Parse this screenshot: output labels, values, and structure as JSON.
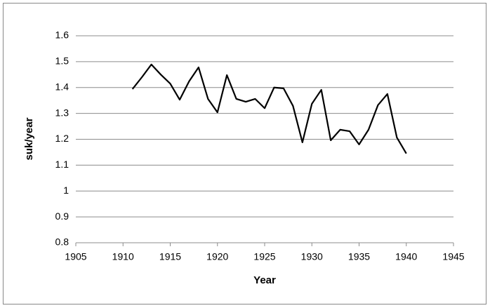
{
  "chart_data": {
    "type": "line",
    "x": [
      1911,
      1912,
      1913,
      1914,
      1915,
      1916,
      1917,
      1918,
      1919,
      1920,
      1921,
      1922,
      1923,
      1924,
      1925,
      1926,
      1927,
      1928,
      1929,
      1930,
      1931,
      1932,
      1933,
      1934,
      1935,
      1936,
      1937,
      1938,
      1939,
      1940
    ],
    "values": [
      1.394,
      1.44,
      1.489,
      1.45,
      1.415,
      1.353,
      1.424,
      1.478,
      1.356,
      1.304,
      1.448,
      1.356,
      1.345,
      1.356,
      1.32,
      1.4,
      1.397,
      1.329,
      1.188,
      1.337,
      1.391,
      1.196,
      1.237,
      1.231,
      1.18,
      1.237,
      1.332,
      1.375,
      1.207,
      1.145
    ],
    "color": "#000000",
    "xlabel": "Year",
    "ylabel": "suk/year",
    "xlim": [
      1905,
      1945
    ],
    "xticks": [
      1905,
      1910,
      1915,
      1920,
      1925,
      1930,
      1935,
      1940,
      1945
    ],
    "ylim": [
      0.8,
      1.6
    ],
    "yticks": [
      0.8,
      0.9,
      1,
      1.1,
      1.2,
      1.3,
      1.4,
      1.5,
      1.6
    ],
    "grid": true
  }
}
